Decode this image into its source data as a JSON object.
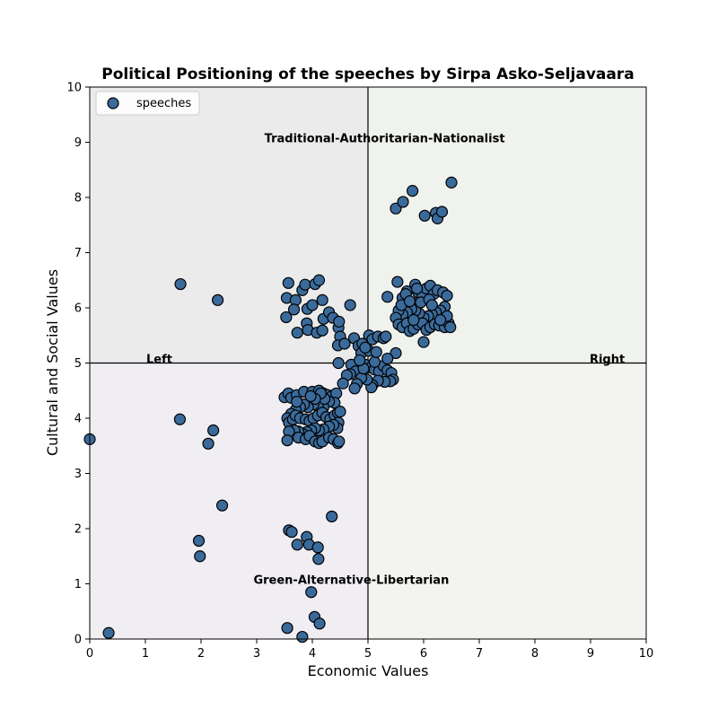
{
  "chart_data": {
    "type": "scatter",
    "title": "Political Positioning of the speeches by Sirpa Asko-Seljavaara",
    "xlabel": "Economic Values",
    "ylabel": "Cultural and Social Values",
    "xlim": [
      0,
      10
    ],
    "ylim": [
      0,
      10
    ],
    "xticks": [
      "0",
      "1",
      "2",
      "3",
      "4",
      "5",
      "6",
      "7",
      "8",
      "9",
      "10"
    ],
    "yticks": [
      "0",
      "1",
      "2",
      "3",
      "4",
      "5",
      "6",
      "7",
      "8",
      "9",
      "10"
    ],
    "grid": false,
    "legend_position": "top-left",
    "center_lines": {
      "x": 5,
      "y": 5
    },
    "quadrant_colors": {
      "top_left": "#ebebeb",
      "top_right": "#eff2ed",
      "bottom_left": "#f0edf3",
      "bottom_right": "#f3f3f0"
    },
    "annotations": [
      {
        "text": "Traditional-Authoritarian-Nationalist",
        "x": 5.3,
        "y": 9.0
      },
      {
        "text": "Green-Alternative-Libertarian",
        "x": 4.7,
        "y": 1.0
      },
      {
        "text": "Left",
        "x": 1.25,
        "y": 5.0
      },
      {
        "text": "Right",
        "x": 9.3,
        "y": 5.0
      }
    ],
    "series": [
      {
        "name": "speeches",
        "color": "#3a6a9a",
        "edge_color": "#000000",
        "points": [
          [
            0.0,
            3.62
          ],
          [
            0.34,
            0.11
          ],
          [
            1.63,
            6.43
          ],
          [
            2.3,
            6.14
          ],
          [
            1.62,
            3.98
          ],
          [
            2.22,
            3.78
          ],
          [
            2.13,
            3.54
          ],
          [
            2.38,
            2.42
          ],
          [
            1.96,
            1.78
          ],
          [
            1.98,
            1.5
          ],
          [
            3.55,
            0.2
          ],
          [
            3.82,
            0.04
          ],
          [
            3.98,
            0.85
          ],
          [
            4.04,
            0.4
          ],
          [
            4.13,
            0.28
          ],
          [
            4.35,
            2.22
          ],
          [
            3.58,
            1.97
          ],
          [
            3.63,
            1.94
          ],
          [
            3.73,
            1.71
          ],
          [
            3.9,
            1.85
          ],
          [
            3.94,
            1.71
          ],
          [
            4.1,
            1.66
          ],
          [
            4.11,
            1.45
          ],
          [
            3.57,
            6.45
          ],
          [
            3.54,
            6.18
          ],
          [
            3.53,
            5.83
          ],
          [
            3.7,
            6.14
          ],
          [
            3.67,
            5.97
          ],
          [
            3.73,
            5.55
          ],
          [
            3.82,
            6.32
          ],
          [
            3.87,
            6.42
          ],
          [
            3.91,
            5.98
          ],
          [
            3.9,
            5.72
          ],
          [
            3.92,
            5.6
          ],
          [
            4.0,
            6.05
          ],
          [
            4.05,
            6.43
          ],
          [
            4.12,
            6.5
          ],
          [
            4.08,
            5.55
          ],
          [
            4.18,
            5.59
          ],
          [
            4.18,
            6.14
          ],
          [
            4.2,
            5.8
          ],
          [
            4.3,
            5.92
          ],
          [
            4.37,
            5.82
          ],
          [
            4.47,
            5.64
          ],
          [
            4.48,
            5.75
          ],
          [
            4.5,
            5.48
          ],
          [
            4.46,
            5.32
          ],
          [
            4.68,
            6.05
          ],
          [
            4.58,
            5.35
          ],
          [
            4.75,
            5.45
          ],
          [
            4.83,
            5.31
          ],
          [
            4.9,
            5.35
          ],
          [
            5.02,
            5.5
          ],
          [
            5.08,
            5.43
          ],
          [
            5.18,
            5.48
          ],
          [
            5.28,
            5.45
          ],
          [
            5.32,
            5.48
          ],
          [
            4.47,
            5.0
          ],
          [
            4.7,
            4.97
          ],
          [
            4.78,
            4.85
          ],
          [
            4.88,
            5.18
          ],
          [
            4.95,
            4.97
          ],
          [
            5.05,
            4.92
          ],
          [
            5.12,
            4.88
          ],
          [
            5.2,
            4.85
          ],
          [
            5.28,
            4.95
          ],
          [
            5.35,
            4.87
          ],
          [
            5.42,
            4.82
          ],
          [
            5.5,
            5.18
          ],
          [
            5.35,
            5.08
          ],
          [
            5.45,
            4.7
          ],
          [
            5.4,
            4.67
          ],
          [
            5.3,
            4.66
          ],
          [
            5.18,
            4.68
          ],
          [
            5.08,
            4.6
          ],
          [
            5.06,
            4.56
          ],
          [
            4.98,
            4.7
          ],
          [
            4.88,
            4.73
          ],
          [
            4.8,
            4.62
          ],
          [
            4.76,
            4.54
          ],
          [
            4.68,
            4.8
          ],
          [
            4.62,
            4.78
          ],
          [
            4.55,
            4.63
          ],
          [
            4.92,
            4.9
          ],
          [
            5.02,
            5.22
          ],
          [
            5.12,
            5.02
          ],
          [
            4.85,
            5.05
          ],
          [
            4.95,
            5.28
          ],
          [
            5.15,
            5.2
          ],
          [
            3.5,
            4.38
          ],
          [
            3.57,
            4.45
          ],
          [
            3.62,
            4.37
          ],
          [
            3.72,
            4.42
          ],
          [
            3.85,
            4.48
          ],
          [
            4.0,
            4.48
          ],
          [
            4.12,
            4.5
          ],
          [
            4.2,
            4.45
          ],
          [
            4.28,
            4.42
          ],
          [
            4.35,
            4.4
          ],
          [
            4.43,
            4.45
          ],
          [
            4.4,
            4.28
          ],
          [
            4.3,
            4.3
          ],
          [
            4.2,
            4.2
          ],
          [
            4.1,
            4.22
          ],
          [
            4.02,
            4.25
          ],
          [
            3.92,
            4.2
          ],
          [
            3.85,
            4.25
          ],
          [
            3.78,
            4.2
          ],
          [
            3.7,
            4.15
          ],
          [
            3.62,
            4.08
          ],
          [
            3.55,
            4.0
          ],
          [
            3.58,
            3.92
          ],
          [
            3.65,
            3.98
          ],
          [
            3.7,
            4.05
          ],
          [
            3.78,
            4.0
          ],
          [
            3.88,
            3.98
          ],
          [
            3.95,
            3.95
          ],
          [
            4.02,
            4.0
          ],
          [
            4.1,
            4.05
          ],
          [
            4.18,
            4.1
          ],
          [
            4.25,
            4.02
          ],
          [
            4.32,
            3.98
          ],
          [
            4.4,
            4.05
          ],
          [
            4.46,
            4.1
          ],
          [
            4.5,
            4.12
          ],
          [
            4.47,
            3.92
          ],
          [
            4.45,
            3.82
          ],
          [
            4.38,
            3.88
          ],
          [
            4.3,
            3.85
          ],
          [
            4.2,
            3.8
          ],
          [
            4.12,
            3.78
          ],
          [
            4.05,
            3.82
          ],
          [
            3.98,
            3.78
          ],
          [
            3.9,
            3.75
          ],
          [
            3.82,
            3.72
          ],
          [
            3.75,
            3.76
          ],
          [
            3.68,
            3.78
          ],
          [
            3.58,
            3.76
          ],
          [
            3.55,
            3.6
          ],
          [
            3.75,
            3.65
          ],
          [
            3.88,
            3.62
          ],
          [
            3.95,
            3.68
          ],
          [
            4.05,
            3.58
          ],
          [
            4.12,
            3.55
          ],
          [
            4.18,
            3.58
          ],
          [
            4.3,
            3.65
          ],
          [
            4.38,
            3.62
          ],
          [
            4.46,
            3.55
          ],
          [
            4.48,
            3.58
          ],
          [
            4.22,
            4.35
          ],
          [
            4.15,
            4.45
          ],
          [
            4.05,
            4.35
          ],
          [
            3.97,
            4.4
          ],
          [
            3.72,
            4.3
          ],
          [
            5.5,
            7.8
          ],
          [
            5.63,
            7.92
          ],
          [
            5.8,
            8.12
          ],
          [
            6.02,
            7.67
          ],
          [
            6.22,
            7.72
          ],
          [
            6.25,
            7.62
          ],
          [
            6.33,
            7.74
          ],
          [
            6.5,
            8.27
          ],
          [
            5.35,
            6.2
          ],
          [
            5.53,
            6.47
          ],
          [
            5.62,
            6.18
          ],
          [
            5.7,
            6.3
          ],
          [
            5.78,
            6.1
          ],
          [
            5.85,
            6.42
          ],
          [
            5.9,
            6.28
          ],
          [
            5.98,
            6.22
          ],
          [
            6.05,
            6.35
          ],
          [
            6.12,
            6.4
          ],
          [
            6.18,
            6.25
          ],
          [
            6.25,
            6.32
          ],
          [
            6.35,
            6.28
          ],
          [
            6.42,
            6.22
          ],
          [
            6.38,
            6.02
          ],
          [
            6.3,
            5.95
          ],
          [
            6.22,
            5.92
          ],
          [
            6.15,
            5.88
          ],
          [
            6.08,
            5.85
          ],
          [
            6.0,
            5.82
          ],
          [
            5.92,
            5.9
          ],
          [
            5.85,
            5.95
          ],
          [
            5.78,
            5.98
          ],
          [
            5.7,
            5.92
          ],
          [
            5.62,
            5.88
          ],
          [
            5.55,
            5.95
          ],
          [
            5.5,
            5.82
          ],
          [
            5.55,
            5.7
          ],
          [
            5.62,
            5.65
          ],
          [
            5.7,
            5.72
          ],
          [
            5.75,
            5.58
          ],
          [
            5.82,
            5.62
          ],
          [
            5.9,
            5.7
          ],
          [
            5.98,
            5.72
          ],
          [
            6.05,
            5.6
          ],
          [
            6.12,
            5.65
          ],
          [
            6.2,
            5.7
          ],
          [
            6.28,
            5.68
          ],
          [
            6.38,
            5.65
          ],
          [
            6.45,
            5.72
          ],
          [
            6.48,
            5.65
          ],
          [
            6.42,
            5.85
          ],
          [
            6.0,
            5.38
          ],
          [
            5.95,
            6.1
          ],
          [
            5.6,
            6.05
          ],
          [
            6.1,
            6.15
          ],
          [
            5.82,
            5.78
          ],
          [
            5.68,
            6.25
          ],
          [
            6.15,
            6.05
          ],
          [
            5.88,
            6.35
          ],
          [
            6.3,
            5.78
          ],
          [
            5.75,
            6.12
          ]
        ]
      }
    ]
  }
}
